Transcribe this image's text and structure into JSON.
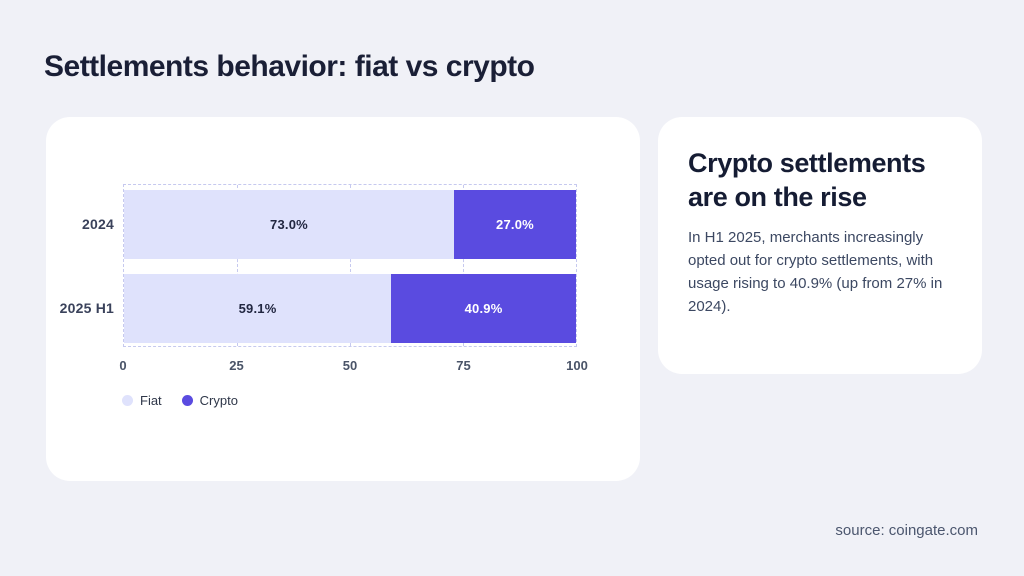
{
  "page": {
    "title": "Settlements behavior: fiat vs crypto",
    "source": "source: coingate.com",
    "background_color": "#f0f1f7",
    "card_color": "#ffffff"
  },
  "chart_data": {
    "type": "bar",
    "orientation": "horizontal",
    "stacked": true,
    "categories": [
      "2024",
      "2025 H1"
    ],
    "series": [
      {
        "name": "Fiat",
        "color": "#dfe2fc",
        "values": [
          73.0,
          59.1
        ],
        "labels": [
          "73.0%",
          "59.1%"
        ],
        "label_color": "#222741"
      },
      {
        "name": "Crypto",
        "color": "#5a4be0",
        "values": [
          27.0,
          40.9
        ],
        "labels": [
          "27.0%",
          "40.9%"
        ],
        "label_color": "#ffffff"
      }
    ],
    "x_ticks": [
      0,
      25,
      50,
      75,
      100
    ],
    "xlim": [
      0,
      100
    ],
    "grid": "vertical-dashed",
    "gridline_color": "#c6c9ef",
    "legend_position": "bottom-left"
  },
  "insight": {
    "heading": "Crypto settlements are on the rise",
    "body": "In H1 2025, merchants increasingly opted out for crypto settlements, with usage rising to 40.9% (up from 27% in 2024)."
  }
}
